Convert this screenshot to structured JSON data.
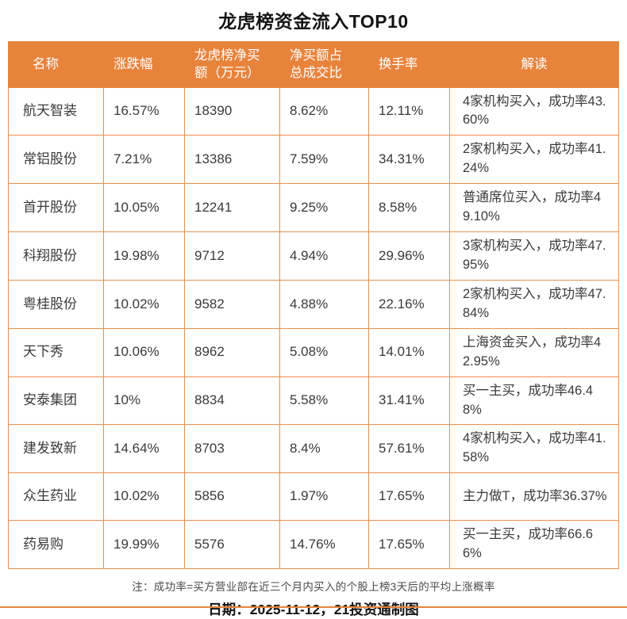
{
  "colors": {
    "accent": "#E8833C",
    "grid": "#EA8F4C"
  },
  "chart_data": {
    "type": "table",
    "title": "龙虎榜资金流入TOP10",
    "columns": [
      "名称",
      "涨跌幅",
      "龙虎榜净买额（万元）",
      "净买额占总成交比",
      "换手率",
      "解读"
    ],
    "rows": [
      [
        "航天智装",
        "16.57%",
        "18390",
        "8.62%",
        "12.11%",
        "4家机构买入，成功率43.60%"
      ],
      [
        "常铝股份",
        "7.21%",
        "13386",
        "7.59%",
        "34.31%",
        "2家机构买入，成功率41.24%"
      ],
      [
        "首开股份",
        "10.05%",
        "12241",
        "9.25%",
        "8.58%",
        "普通席位买入，成功率49.10%"
      ],
      [
        "科翔股份",
        "19.98%",
        "9712",
        "4.94%",
        "29.96%",
        "3家机构买入，成功率47.95%"
      ],
      [
        "粤桂股份",
        "10.02%",
        "9582",
        "4.88%",
        "22.16%",
        "2家机构买入，成功率47.84%"
      ],
      [
        "天下秀",
        "10.06%",
        "8962",
        "5.08%",
        "14.01%",
        "上海资金买入，成功率42.95%"
      ],
      [
        "安泰集团",
        "10%",
        "8834",
        "5.58%",
        "31.41%",
        "买一主买，成功率46.48%"
      ],
      [
        "建发致新",
        "14.64%",
        "8703",
        "8.4%",
        "57.61%",
        "4家机构买入，成功率41.58%"
      ],
      [
        "众生药业",
        "10.02%",
        "5856",
        "1.97%",
        "17.65%",
        "主力做T，成功率36.37%"
      ],
      [
        "药易购",
        "19.99%",
        "5576",
        "14.76%",
        "17.65%",
        "买一主买，成功率66.66%"
      ]
    ],
    "footnote": "注：成功率=买方营业部在近三个月内买入的个股上榜3天后的平均上涨概率",
    "date_line": "日期：2025-11-12，21投资通制图"
  }
}
